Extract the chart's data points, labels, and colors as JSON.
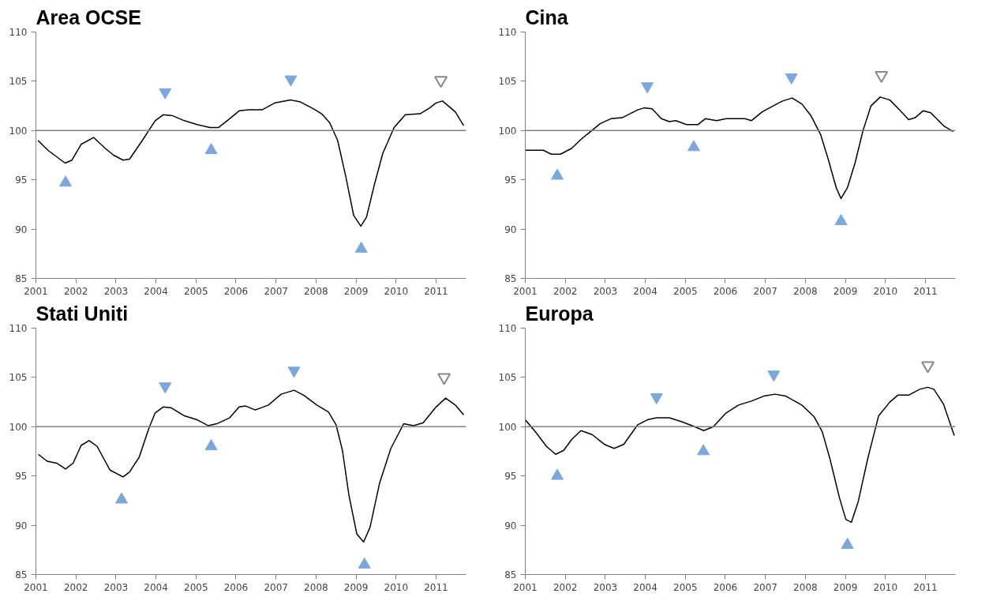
{
  "chart_data": [
    {
      "type": "line",
      "title": "Area OCSE",
      "xlim": [
        2001,
        2011.75
      ],
      "xticks": [
        2001,
        2002,
        2003,
        2004,
        2005,
        2006,
        2007,
        2008,
        2009,
        2010,
        2011
      ],
      "ylim": [
        85,
        110
      ],
      "yticks": [
        85,
        90,
        95,
        100,
        105,
        110
      ],
      "ref_lines": [
        {
          "axis": "y",
          "value": 100,
          "color": "#808080"
        }
      ],
      "series": [
        {
          "color": "#000000",
          "x": [
            2001.05,
            2001.3,
            2001.73,
            2001.9,
            2002.13,
            2002.44,
            2002.73,
            2002.94,
            2003.18,
            2003.34,
            2003.66,
            2003.98,
            2004.18,
            2004.42,
            2004.71,
            2005.03,
            2005.35,
            2005.56,
            2005.84,
            2006.08,
            2006.32,
            2006.65,
            2006.97,
            2007.37,
            2007.61,
            2007.94,
            2008.14,
            2008.34,
            2008.54,
            2008.74,
            2008.94,
            2009.12,
            2009.26,
            2009.47,
            2009.67,
            2009.95,
            2010.23,
            2010.6,
            2010.84,
            2011.0,
            2011.16,
            2011.48,
            2011.69
          ],
          "values": [
            99.0,
            98.0,
            96.7,
            97.0,
            98.6,
            99.3,
            98.2,
            97.5,
            97.0,
            97.1,
            99.0,
            101.0,
            101.6,
            101.5,
            101.0,
            100.6,
            100.3,
            100.3,
            101.2,
            102.0,
            102.1,
            102.1,
            102.8,
            103.1,
            102.9,
            102.2,
            101.7,
            100.8,
            99.0,
            95.4,
            91.4,
            90.3,
            91.2,
            94.7,
            97.7,
            100.3,
            101.6,
            101.7,
            102.3,
            102.8,
            103.0,
            101.9,
            100.5
          ]
        },
        {
          "type": "scatter",
          "marker": "triangle",
          "color": "#7ba7dc",
          "x": [
            2001.74,
            2005.38,
            2009.13
          ],
          "values": [
            94.7,
            98.0,
            88.0
          ]
        },
        {
          "type": "scatter",
          "marker": "triangle_down",
          "color": "#7ba7dc",
          "x": [
            2004.23,
            2007.37
          ],
          "values": [
            103.9,
            105.2
          ]
        },
        {
          "type": "scatter",
          "marker": "triangle_down_open",
          "color": "#888888",
          "x": [
            2011.12
          ],
          "values": [
            105.1
          ]
        }
      ]
    },
    {
      "type": "line",
      "title": "Cina",
      "xlim": [
        2001,
        2011.75
      ],
      "xticks": [
        2001,
        2002,
        2003,
        2004,
        2005,
        2006,
        2007,
        2008,
        2009,
        2010,
        2011
      ],
      "ylim": [
        85,
        110
      ],
      "yticks": [
        85,
        90,
        95,
        100,
        105,
        110
      ],
      "ref_lines": [
        {
          "axis": "y",
          "value": 100,
          "color": "#808080"
        }
      ],
      "series": [
        {
          "color": "#000000",
          "x": [
            2001.0,
            2001.45,
            2001.65,
            2001.88,
            2002.16,
            2002.39,
            2002.63,
            2002.87,
            2003.14,
            2003.42,
            2003.81,
            2003.97,
            2004.17,
            2004.4,
            2004.6,
            2004.76,
            2005.03,
            2005.31,
            2005.5,
            2005.78,
            2006.02,
            2006.49,
            2006.65,
            2006.92,
            2007.24,
            2007.43,
            2007.67,
            2007.91,
            2008.14,
            2008.38,
            2008.57,
            2008.77,
            2008.89,
            2009.05,
            2009.24,
            2009.44,
            2009.64,
            2009.87,
            2010.11,
            2010.35,
            2010.58,
            2010.74,
            2010.94,
            2011.13,
            2011.45,
            2011.69
          ],
          "values": [
            98.0,
            98.0,
            97.6,
            97.6,
            98.2,
            99.1,
            99.9,
            100.7,
            101.2,
            101.3,
            102.1,
            102.3,
            102.2,
            101.2,
            100.9,
            101.0,
            100.6,
            100.6,
            101.2,
            101.0,
            101.2,
            101.2,
            101.0,
            101.9,
            102.6,
            103.0,
            103.3,
            102.7,
            101.5,
            99.6,
            97.1,
            94.2,
            93.1,
            94.2,
            96.7,
            100.0,
            102.5,
            103.4,
            103.1,
            102.1,
            101.1,
            101.3,
            102.0,
            101.8,
            100.5,
            99.9
          ]
        },
        {
          "type": "scatter",
          "marker": "triangle",
          "color": "#7ba7dc",
          "x": [
            2001.8,
            2005.21,
            2008.89
          ],
          "values": [
            95.4,
            98.3,
            90.8
          ]
        },
        {
          "type": "scatter",
          "marker": "triangle_down",
          "color": "#7ba7dc",
          "x": [
            2004.05,
            2007.65
          ],
          "values": [
            104.5,
            105.4
          ]
        },
        {
          "type": "scatter",
          "marker": "triangle_down_open",
          "color": "#888888",
          "x": [
            2009.9
          ],
          "values": [
            105.6
          ]
        }
      ]
    },
    {
      "type": "line",
      "title": "Stati Uniti",
      "xlim": [
        2001,
        2011.75
      ],
      "xticks": [
        2001,
        2002,
        2003,
        2004,
        2005,
        2006,
        2007,
        2008,
        2009,
        2010,
        2011
      ],
      "ylim": [
        85,
        110
      ],
      "yticks": [
        85,
        90,
        95,
        100,
        105,
        110
      ],
      "ref_lines": [
        {
          "axis": "y",
          "value": 100,
          "color": "#808080"
        }
      ],
      "series": [
        {
          "color": "#000000",
          "x": [
            2001.06,
            2001.28,
            2001.52,
            2001.74,
            2001.93,
            2002.13,
            2002.33,
            2002.53,
            2002.85,
            2003.18,
            2003.34,
            2003.58,
            2003.82,
            2003.98,
            2004.18,
            2004.39,
            2004.71,
            2005.03,
            2005.31,
            2005.52,
            2005.84,
            2006.08,
            2006.24,
            2006.48,
            2006.81,
            2007.13,
            2007.45,
            2007.69,
            2008.02,
            2008.31,
            2008.5,
            2008.66,
            2008.82,
            2009.02,
            2009.19,
            2009.35,
            2009.59,
            2009.87,
            2010.19,
            2010.44,
            2010.68,
            2011.0,
            2011.24,
            2011.48,
            2011.69
          ],
          "values": [
            97.2,
            96.5,
            96.3,
            95.7,
            96.3,
            98.1,
            98.6,
            98.0,
            95.6,
            94.9,
            95.4,
            96.9,
            99.8,
            101.4,
            102.0,
            101.9,
            101.1,
            100.7,
            100.1,
            100.3,
            100.9,
            102.0,
            102.1,
            101.7,
            102.2,
            103.3,
            103.7,
            103.2,
            102.2,
            101.5,
            100.2,
            97.6,
            93.1,
            89.1,
            88.3,
            89.8,
            94.3,
            97.8,
            100.3,
            100.1,
            100.4,
            102.0,
            102.9,
            102.2,
            101.2
          ]
        },
        {
          "type": "scatter",
          "marker": "triangle",
          "color": "#7ba7dc",
          "x": [
            2003.14,
            2005.38,
            2009.21
          ],
          "values": [
            92.6,
            98.0,
            86.0
          ]
        },
        {
          "type": "scatter",
          "marker": "triangle_down",
          "color": "#7ba7dc",
          "x": [
            2004.23,
            2007.45
          ],
          "values": [
            104.1,
            105.7
          ]
        },
        {
          "type": "scatter",
          "marker": "triangle_down_open",
          "color": "#888888",
          "x": [
            2011.2
          ],
          "values": [
            105.0
          ]
        }
      ]
    },
    {
      "type": "line",
      "title": "Europa",
      "xlim": [
        2001,
        2011.75
      ],
      "xticks": [
        2001,
        2002,
        2003,
        2004,
        2005,
        2006,
        2007,
        2008,
        2009,
        2010,
        2011
      ],
      "ylim": [
        85,
        110
      ],
      "yticks": [
        85,
        90,
        95,
        100,
        105,
        110
      ],
      "ref_lines": [
        {
          "axis": "y",
          "value": 100,
          "color": "#808080"
        }
      ],
      "series": [
        {
          "color": "#000000",
          "x": [
            2001.0,
            2001.25,
            2001.53,
            2001.76,
            2001.96,
            2002.16,
            2002.39,
            2002.67,
            2002.98,
            2003.22,
            2003.46,
            2003.81,
            2004.05,
            2004.28,
            2004.6,
            2004.91,
            2005.23,
            2005.46,
            2005.7,
            2006.02,
            2006.33,
            2006.65,
            2006.96,
            2007.24,
            2007.51,
            2007.91,
            2008.22,
            2008.42,
            2008.61,
            2008.85,
            2009.01,
            2009.15,
            2009.32,
            2009.56,
            2009.83,
            2010.11,
            2010.31,
            2010.58,
            2010.86,
            2011.06,
            2011.21,
            2011.45,
            2011.72
          ],
          "values": [
            100.7,
            99.5,
            98.0,
            97.2,
            97.6,
            98.7,
            99.6,
            99.2,
            98.2,
            97.8,
            98.2,
            100.2,
            100.7,
            100.9,
            100.9,
            100.5,
            100.0,
            99.6,
            100.0,
            101.4,
            102.2,
            102.6,
            103.1,
            103.3,
            103.1,
            102.2,
            101.0,
            99.5,
            96.8,
            92.8,
            90.6,
            90.3,
            92.4,
            96.8,
            101.1,
            102.5,
            103.2,
            103.2,
            103.8,
            104.0,
            103.8,
            102.3,
            99.1
          ]
        },
        {
          "type": "scatter",
          "marker": "triangle",
          "color": "#7ba7dc",
          "x": [
            2001.8,
            2005.45,
            2009.05
          ],
          "values": [
            95.0,
            97.5,
            88.0
          ]
        },
        {
          "type": "scatter",
          "marker": "triangle_down",
          "color": "#7ba7dc",
          "x": [
            2004.28,
            2007.21
          ],
          "values": [
            103.0,
            105.3
          ]
        },
        {
          "type": "scatter",
          "marker": "triangle_down_open",
          "color": "#888888",
          "x": [
            2011.06
          ],
          "values": [
            106.2
          ]
        }
      ]
    }
  ]
}
